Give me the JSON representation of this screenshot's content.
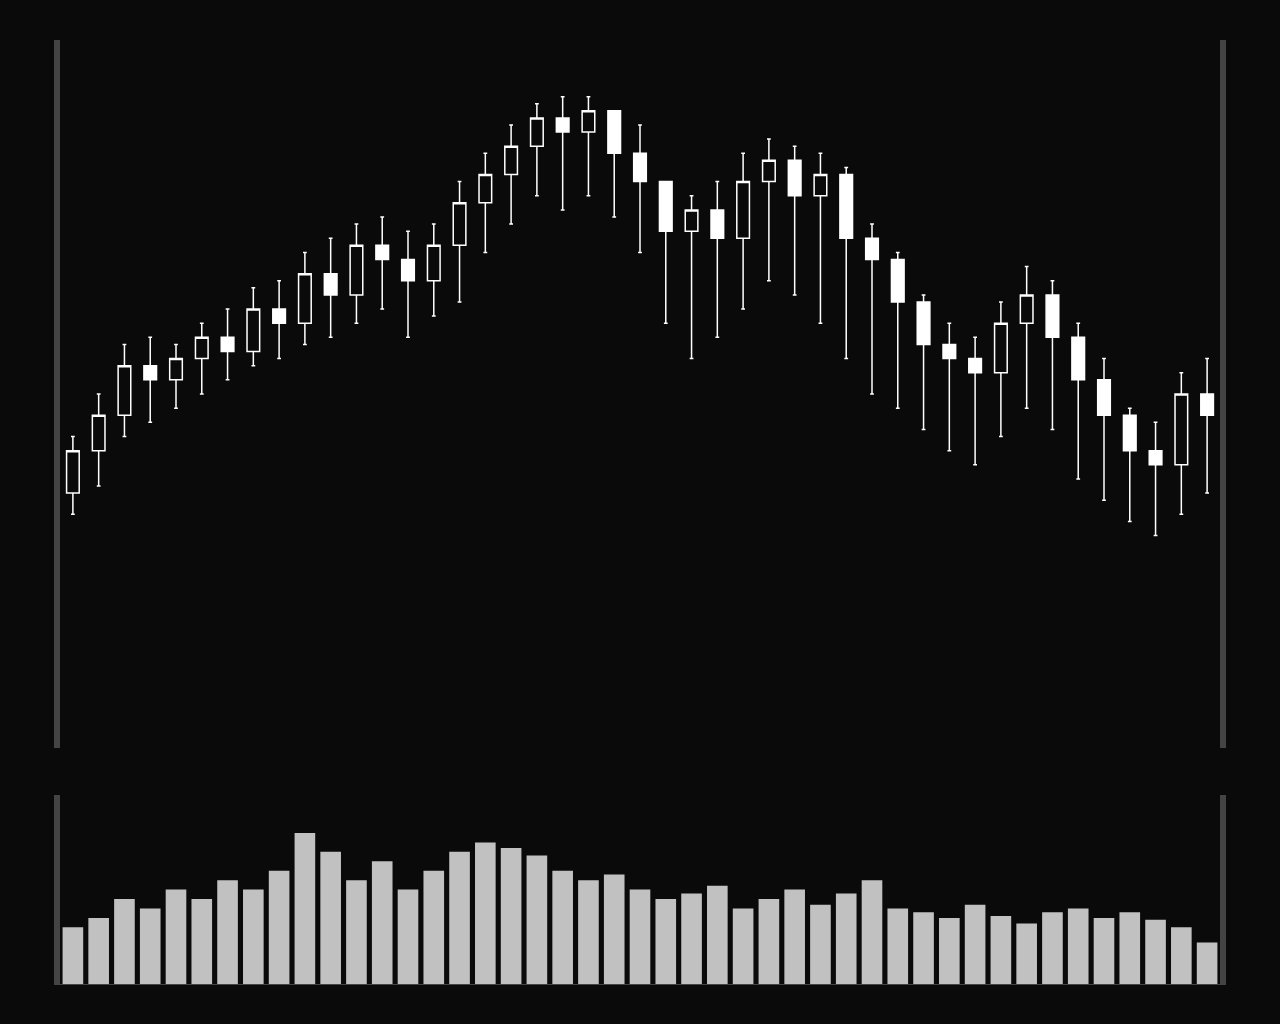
{
  "chart_data": {
    "type": "candlestick",
    "categories": [
      null,
      null,
      null,
      null,
      null,
      null,
      null,
      null,
      null,
      null,
      null,
      null,
      null,
      null,
      null,
      null,
      null,
      null,
      null,
      null,
      null,
      null,
      null,
      null,
      null,
      null,
      null,
      null,
      null,
      null,
      null,
      null,
      null,
      null,
      null,
      null,
      null,
      null,
      null,
      null,
      null,
      null,
      null,
      null,
      null
    ],
    "open": [
      36,
      42,
      47,
      54,
      52,
      55,
      58,
      56,
      62,
      60,
      67,
      64,
      71,
      69,
      66,
      71,
      77,
      81,
      85,
      89,
      87,
      90,
      84,
      80,
      73,
      76,
      72,
      80,
      83,
      78,
      81,
      72,
      69,
      63,
      57,
      55,
      53,
      60,
      64,
      58,
      52,
      47,
      42,
      40,
      50
    ],
    "high": [
      44,
      50,
      57,
      58,
      57,
      60,
      62,
      65,
      66,
      70,
      72,
      74,
      75,
      73,
      74,
      80,
      84,
      88,
      91,
      92,
      92,
      90,
      88,
      80,
      78,
      80,
      84,
      86,
      85,
      84,
      82,
      74,
      70,
      64,
      60,
      58,
      63,
      68,
      66,
      60,
      55,
      48,
      46,
      53,
      55
    ],
    "low": [
      33,
      37,
      44,
      46,
      48,
      50,
      52,
      54,
      55,
      57,
      58,
      60,
      62,
      58,
      61,
      63,
      70,
      74,
      78,
      76,
      78,
      75,
      70,
      60,
      55,
      58,
      62,
      66,
      64,
      60,
      55,
      50,
      48,
      45,
      42,
      40,
      44,
      48,
      45,
      38,
      35,
      32,
      30,
      33,
      36
    ],
    "close": [
      42,
      47,
      54,
      52,
      55,
      58,
      56,
      62,
      60,
      67,
      64,
      71,
      69,
      66,
      71,
      77,
      81,
      85,
      89,
      87,
      90,
      84,
      80,
      73,
      76,
      72,
      80,
      83,
      78,
      81,
      72,
      69,
      63,
      57,
      55,
      53,
      60,
      64,
      58,
      52,
      47,
      42,
      40,
      50,
      47
    ],
    "volume": [
      30,
      35,
      45,
      40,
      50,
      45,
      55,
      50,
      60,
      80,
      70,
      55,
      65,
      50,
      60,
      70,
      75,
      72,
      68,
      60,
      55,
      58,
      50,
      45,
      48,
      52,
      40,
      45,
      50,
      42,
      48,
      55,
      40,
      38,
      35,
      42,
      36,
      32,
      38,
      40,
      35,
      38,
      34,
      30,
      22
    ],
    "color": "#ffffff",
    "ylim": [
      0,
      100
    ],
    "y2lim": [
      0,
      100
    ],
    "grid": false,
    "tick_labels": false
  }
}
